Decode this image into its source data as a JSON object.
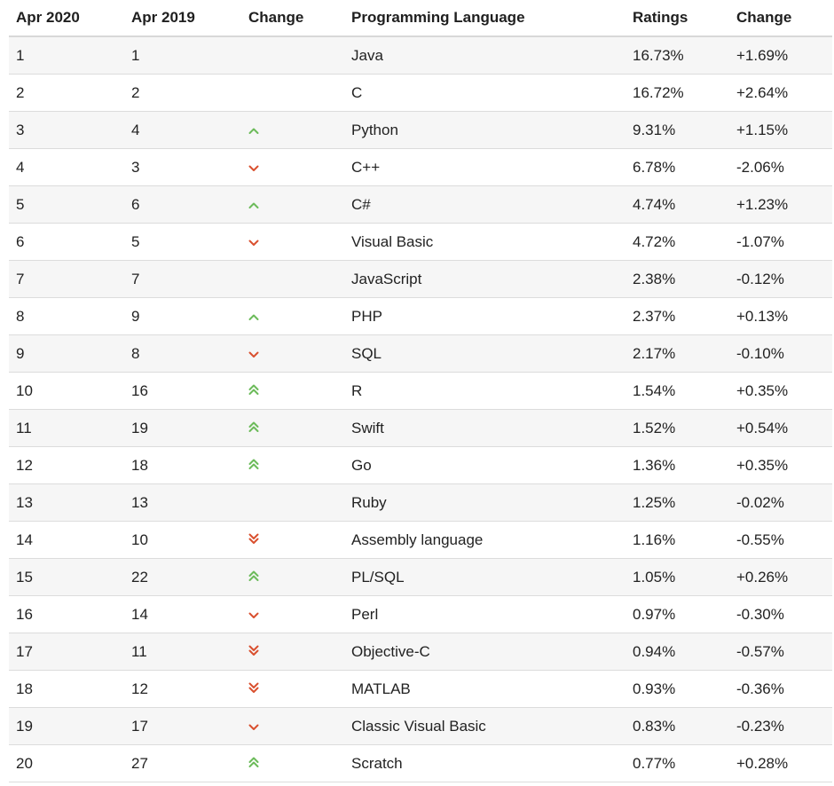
{
  "headers": [
    "Apr 2020",
    "Apr 2019",
    "Change",
    "Programming Language",
    "Ratings",
    "Change"
  ],
  "colors": {
    "up": "#6cbb5a",
    "down": "#d9502f"
  },
  "rows": [
    {
      "rank2020": "1",
      "rank2019": "1",
      "trend": "none",
      "language": "Java",
      "rating": "16.73%",
      "change": "+1.69%"
    },
    {
      "rank2020": "2",
      "rank2019": "2",
      "trend": "none",
      "language": "C",
      "rating": "16.72%",
      "change": "+2.64%"
    },
    {
      "rank2020": "3",
      "rank2019": "4",
      "trend": "up",
      "language": "Python",
      "rating": "9.31%",
      "change": "+1.15%"
    },
    {
      "rank2020": "4",
      "rank2019": "3",
      "trend": "down",
      "language": "C++",
      "rating": "6.78%",
      "change": "-2.06%"
    },
    {
      "rank2020": "5",
      "rank2019": "6",
      "trend": "up",
      "language": "C#",
      "rating": "4.74%",
      "change": "+1.23%"
    },
    {
      "rank2020": "6",
      "rank2019": "5",
      "trend": "down",
      "language": "Visual Basic",
      "rating": "4.72%",
      "change": "-1.07%"
    },
    {
      "rank2020": "7",
      "rank2019": "7",
      "trend": "none",
      "language": "JavaScript",
      "rating": "2.38%",
      "change": "-0.12%"
    },
    {
      "rank2020": "8",
      "rank2019": "9",
      "trend": "up",
      "language": "PHP",
      "rating": "2.37%",
      "change": "+0.13%"
    },
    {
      "rank2020": "9",
      "rank2019": "8",
      "trend": "down",
      "language": "SQL",
      "rating": "2.17%",
      "change": "-0.10%"
    },
    {
      "rank2020": "10",
      "rank2019": "16",
      "trend": "double-up",
      "language": "R",
      "rating": "1.54%",
      "change": "+0.35%"
    },
    {
      "rank2020": "11",
      "rank2019": "19",
      "trend": "double-up",
      "language": "Swift",
      "rating": "1.52%",
      "change": "+0.54%"
    },
    {
      "rank2020": "12",
      "rank2019": "18",
      "trend": "double-up",
      "language": "Go",
      "rating": "1.36%",
      "change": "+0.35%"
    },
    {
      "rank2020": "13",
      "rank2019": "13",
      "trend": "none",
      "language": "Ruby",
      "rating": "1.25%",
      "change": "-0.02%"
    },
    {
      "rank2020": "14",
      "rank2019": "10",
      "trend": "double-down",
      "language": "Assembly language",
      "rating": "1.16%",
      "change": "-0.55%"
    },
    {
      "rank2020": "15",
      "rank2019": "22",
      "trend": "double-up",
      "language": "PL/SQL",
      "rating": "1.05%",
      "change": "+0.26%"
    },
    {
      "rank2020": "16",
      "rank2019": "14",
      "trend": "down",
      "language": "Perl",
      "rating": "0.97%",
      "change": "-0.30%"
    },
    {
      "rank2020": "17",
      "rank2019": "11",
      "trend": "double-down",
      "language": "Objective-C",
      "rating": "0.94%",
      "change": "-0.57%"
    },
    {
      "rank2020": "18",
      "rank2019": "12",
      "trend": "double-down",
      "language": "MATLAB",
      "rating": "0.93%",
      "change": "-0.36%"
    },
    {
      "rank2020": "19",
      "rank2019": "17",
      "trend": "down",
      "language": "Classic Visual Basic",
      "rating": "0.83%",
      "change": "-0.23%"
    },
    {
      "rank2020": "20",
      "rank2019": "27",
      "trend": "double-up",
      "language": "Scratch",
      "rating": "0.77%",
      "change": "+0.28%"
    }
  ]
}
